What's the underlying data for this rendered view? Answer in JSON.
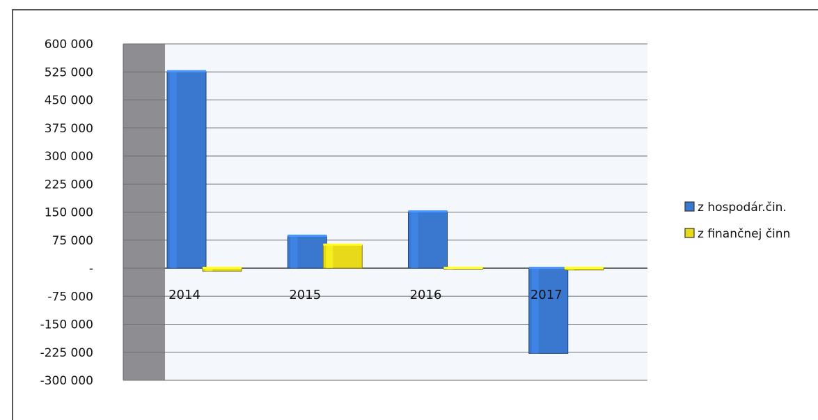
{
  "chart_data": {
    "type": "bar",
    "title": "",
    "xlabel": "",
    "ylabel": "",
    "categories": [
      "2014",
      "2015",
      "2016",
      "2017"
    ],
    "series": [
      {
        "name": "z hospodár.čin.",
        "color": "#3a78d0",
        "values": [
          526000,
          86000,
          151000,
          -228000
        ]
      },
      {
        "name": "z finančnej činn",
        "color": "#e8d91a",
        "values": [
          -8000,
          62000,
          -1500,
          -5000
        ]
      }
    ],
    "ylim": [
      -300000,
      600000
    ],
    "y_ticks": [
      600000,
      525000,
      450000,
      375000,
      300000,
      225000,
      150000,
      75000,
      0,
      -75000,
      -150000,
      -225000,
      -300000
    ],
    "y_tick_labels": [
      "600 000",
      "525 000",
      "450 000",
      "375 000",
      "300 000",
      "225 000",
      "150 000",
      "75 000",
      "-",
      "-75 000",
      "-150 000",
      "-225 000",
      "-300 000"
    ],
    "grid": true,
    "legend": "right"
  }
}
